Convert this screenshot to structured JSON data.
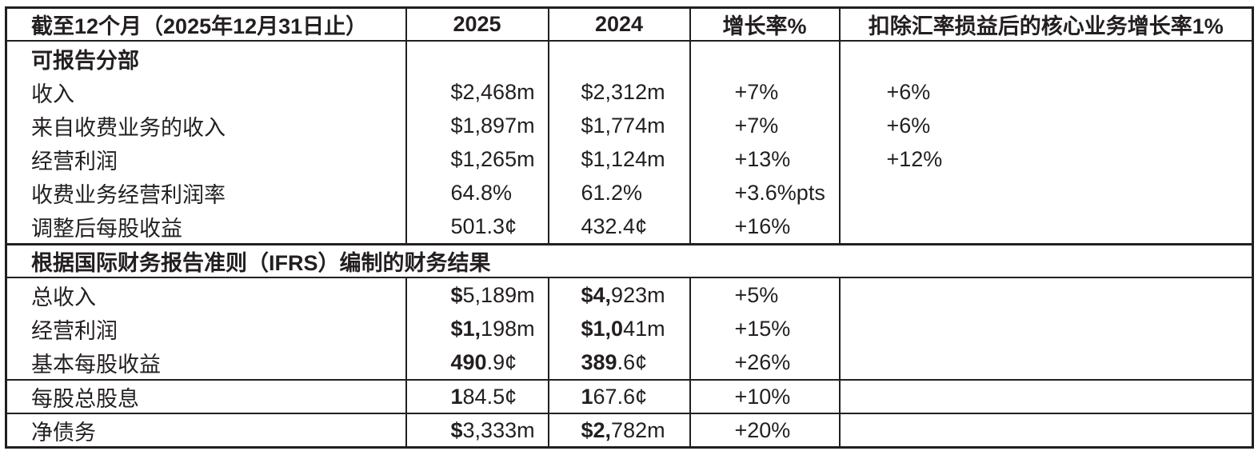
{
  "colors": {
    "text": "#231f20",
    "border": "#231f20",
    "background": "#ffffff"
  },
  "header": {
    "period": "截至12个月（2025年12月31日止）",
    "y2025": "2025",
    "y2024": "2024",
    "growth": "增长率%",
    "core": "扣除汇率损益后的核心业务增长率1%"
  },
  "section1": {
    "title": "可报告分部",
    "rows": [
      {
        "label": "收入",
        "y2025": "$2,468m",
        "y2024": "$2,312m",
        "growth": "+7%",
        "core": "+6%"
      },
      {
        "label": "来自收费业务的收入",
        "y2025": "$1,897m",
        "y2024": "$1,774m",
        "growth": "+7%",
        "core": "+6%"
      },
      {
        "label": "经营利润",
        "y2025": "$1,265m",
        "y2024": "$1,124m",
        "growth": "+13%",
        "core": "+12%"
      },
      {
        "label": "收费业务经营利润率",
        "y2025": "64.8%",
        "y2024": "61.2%",
        "growth": "+3.6%pts",
        "core": ""
      },
      {
        "label": "调整后每股收益",
        "y2025": "501.3¢",
        "y2024": "432.4¢",
        "growth": "+16%",
        "core": ""
      }
    ]
  },
  "section2": {
    "title": "根据国际财务报告准则（IFRS）编制的财务结果",
    "rows": [
      {
        "label": "总收入",
        "y2025b": "$",
        "y2025": "5,189m",
        "y2024b": "$4,",
        "y2024": "923m",
        "growth": "+5%",
        "core": ""
      },
      {
        "label": "经营利润",
        "y2025b": "$1,",
        "y2025": "198m",
        "y2024b": "$1,0",
        "y2024": "41m",
        "growth": "+15%",
        "core": ""
      },
      {
        "label": "基本每股收益",
        "y2025b": "490",
        "y2025": ".9¢",
        "y2024b": "389",
        "y2024": ".6¢",
        "growth": "+26%",
        "core": ""
      },
      {
        "label": "每股总股息",
        "y2025b": "1",
        "y2025": "84.5¢",
        "y2024b": "1",
        "y2024": "67.6¢",
        "growth": "+10%",
        "core": ""
      },
      {
        "label": "净债务",
        "y2025b": "$",
        "y2025": "3,333m",
        "y2024b": "$2,",
        "y2024": "782m",
        "growth": "+20%",
        "core": ""
      }
    ]
  }
}
